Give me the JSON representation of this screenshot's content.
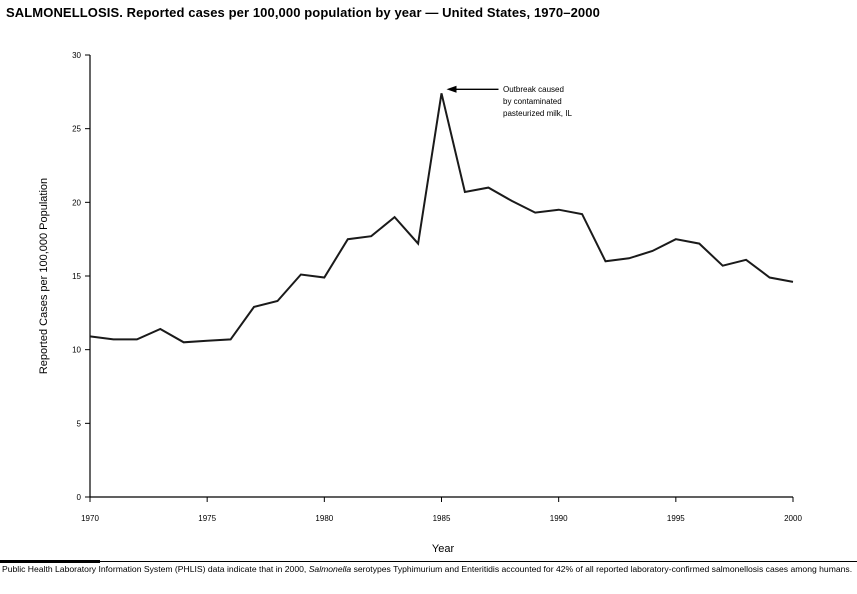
{
  "title": "SALMONELLOSIS. Reported cases per 100,000 population by year — United States, 1970–2000",
  "chart_data": {
    "type": "line",
    "title": "SALMONELLOSIS. Reported cases per 100,000 population by year — United States, 1970–2000",
    "xlabel": "Year",
    "ylabel": "Reported Cases per 100,000 Population",
    "xlim": [
      1970,
      2000
    ],
    "ylim": [
      0,
      30
    ],
    "xticks": [
      1970,
      1975,
      1980,
      1985,
      1990,
      1995,
      2000
    ],
    "yticks": [
      0,
      5,
      10,
      15,
      20,
      25,
      30
    ],
    "grid": false,
    "line_color": "#1a1a1a",
    "x": [
      1970,
      1971,
      1972,
      1973,
      1974,
      1975,
      1976,
      1977,
      1978,
      1979,
      1980,
      1981,
      1982,
      1983,
      1984,
      1985,
      1986,
      1987,
      1988,
      1989,
      1990,
      1991,
      1992,
      1993,
      1994,
      1995,
      1996,
      1997,
      1998,
      1999,
      2000
    ],
    "values": [
      10.9,
      10.7,
      10.7,
      11.4,
      10.5,
      10.6,
      10.7,
      12.9,
      13.3,
      15.1,
      14.9,
      17.5,
      17.7,
      19.0,
      17.2,
      27.4,
      20.7,
      21.0,
      20.1,
      19.3,
      19.5,
      19.2,
      16.0,
      16.2,
      16.7,
      17.5,
      17.2,
      15.7,
      16.1,
      14.9,
      14.6
    ],
    "annotation": {
      "lines": [
        "Outbreak caused",
        "by contaminated",
        "pasteurized milk, IL"
      ],
      "x": 1985,
      "y": 27.4
    }
  },
  "footnote": {
    "part1": "Public Health Laboratory Information System (PHLIS) data indicate that in 2000, ",
    "italic": "Salmonella",
    "part2": " serotypes Typhimurium and Enteritidis accounted for 42% of all reported laboratory-confirmed salmonellosis cases among humans."
  }
}
